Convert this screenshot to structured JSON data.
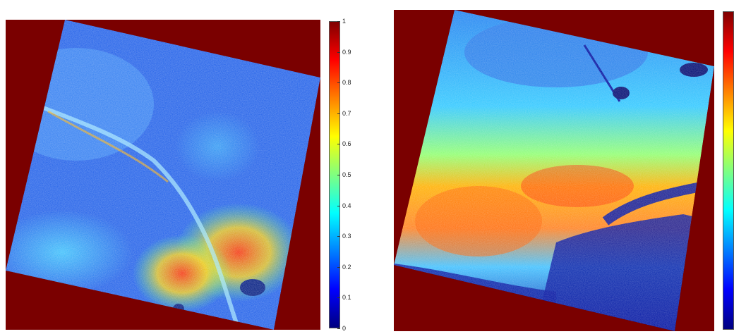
{
  "figures": [
    {
      "id": "left",
      "colorbar": {
        "min": 0,
        "max": 1,
        "ticks": [
          "1",
          "0.9",
          "0.8",
          "0.7",
          "0.6",
          "0.5",
          "0.4",
          "0.3",
          "0.2",
          "0.1",
          "0"
        ],
        "colormap": "jet"
      },
      "background_color": "#7a0000",
      "image_rotation_deg": 15
    },
    {
      "id": "right",
      "colorbar": {
        "ticks": [],
        "colormap": "jet"
      },
      "background_color": "#7a0000",
      "image_rotation_deg": 15
    }
  ]
}
